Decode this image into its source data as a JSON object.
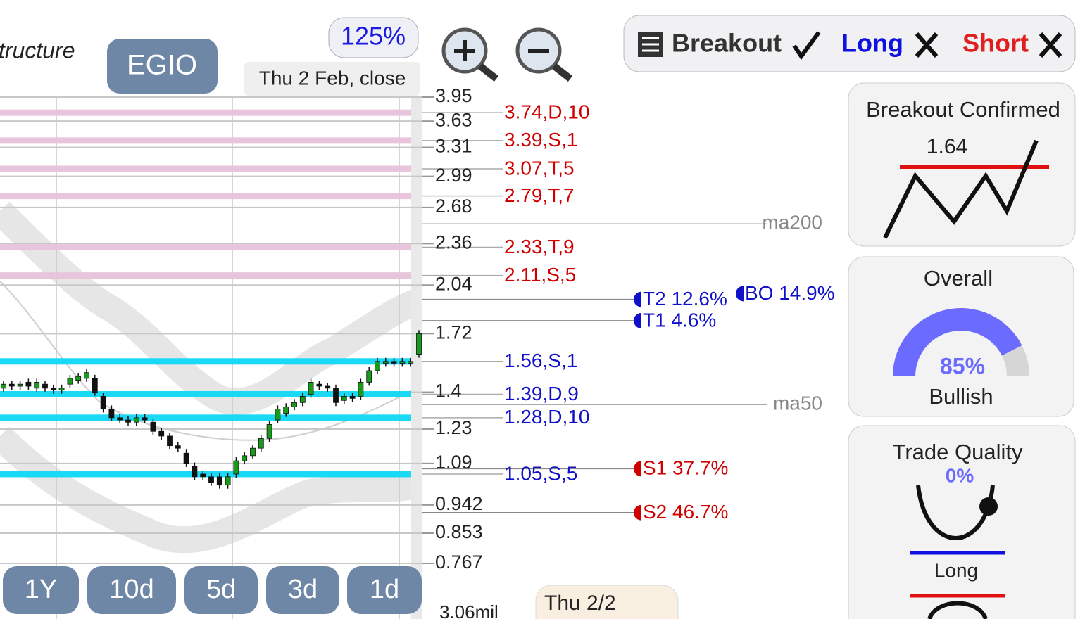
{
  "header": {
    "title_fragment": "tructure",
    "symbol": "EGIO",
    "zoom": "125%",
    "date_label": "Thu 2 Feb, close"
  },
  "toolbar": {
    "breakout": "Breakout",
    "long": "Long",
    "short": "Short"
  },
  "price_axis": {
    "ylim": [
      0.767,
      3.95
    ],
    "log": true,
    "ticks": [
      3.95,
      3.63,
      3.31,
      2.99,
      2.68,
      2.36,
      2.04,
      1.72,
      1.4,
      1.23,
      1.09,
      0.942,
      0.853,
      0.767
    ]
  },
  "levels": [
    {
      "label": "3.74,D,10",
      "price": 3.74,
      "color": "#d00000",
      "band": "#e8c5dc"
    },
    {
      "label": "3.39,S,1",
      "price": 3.39,
      "color": "#d00000",
      "band": "#e8c5dc"
    },
    {
      "label": "3.07,T,5",
      "price": 3.07,
      "color": "#d00000",
      "band": "#e8c5dc"
    },
    {
      "label": "2.79,T,7",
      "price": 2.79,
      "color": "#d00000",
      "band": "#e8c5dc"
    },
    {
      "label": "2.33,T,9",
      "price": 2.33,
      "color": "#d00000",
      "band": "#e8c5dc"
    },
    {
      "label": "2.11,S,5",
      "price": 2.11,
      "color": "#d00000",
      "band": "#e8c5dc"
    },
    {
      "label": "1.56,S,1",
      "price": 1.56,
      "color": "#1010c8",
      "band": "#19d9f5"
    },
    {
      "label": "1.39,D,9",
      "price": 1.39,
      "color": "#1010c8",
      "band": "#19d9f5"
    },
    {
      "label": "1.28,D,10",
      "price": 1.28,
      "color": "#1010c8",
      "band": "#19d9f5"
    },
    {
      "label": "1.05,S,5",
      "price": 1.05,
      "color": "#1010c8",
      "band": "#19d9f5"
    }
  ],
  "moving_averages": [
    {
      "label": "ma200",
      "price": 2.53
    },
    {
      "label": "ma50",
      "price": 1.34
    }
  ],
  "targets": [
    {
      "label": "T2 12.6%",
      "price": 1.94,
      "color": "#1010c8",
      "x": "near"
    },
    {
      "label": "BO 14.9%",
      "price": 1.98,
      "color": "#1010c8",
      "x": "far"
    },
    {
      "label": "T1 4.6%",
      "price": 1.8,
      "color": "#1010c8",
      "x": "near"
    },
    {
      "label": "S1 37.7%",
      "price": 1.07,
      "color": "#d00000",
      "x": "near"
    },
    {
      "label": "S2 46.7%",
      "price": 0.917,
      "color": "#d00000",
      "x": "near"
    }
  ],
  "candles": {
    "open": [
      1.42,
      1.44,
      1.43,
      1.45,
      1.42,
      1.44,
      1.42,
      1.41,
      1.44,
      1.46,
      1.47,
      1.47,
      1.38,
      1.32,
      1.28,
      1.27,
      1.26,
      1.28,
      1.26,
      1.22,
      1.2,
      1.16,
      1.13,
      1.08,
      1.05,
      1.04,
      1.04,
      1.01,
      1.05,
      1.1,
      1.12,
      1.15,
      1.19,
      1.27,
      1.3,
      1.33,
      1.35,
      1.39,
      1.44,
      1.43,
      1.42,
      1.36,
      1.38,
      1.38,
      1.45,
      1.51,
      1.55,
      1.56,
      1.55,
      1.55,
      1.6
    ],
    "close": [
      1.44,
      1.43,
      1.44,
      1.43,
      1.45,
      1.42,
      1.41,
      1.42,
      1.47,
      1.48,
      1.5,
      1.4,
      1.32,
      1.28,
      1.27,
      1.26,
      1.28,
      1.27,
      1.22,
      1.2,
      1.16,
      1.15,
      1.09,
      1.04,
      1.04,
      1.02,
      1.01,
      1.04,
      1.1,
      1.12,
      1.15,
      1.19,
      1.25,
      1.32,
      1.33,
      1.35,
      1.38,
      1.45,
      1.43,
      1.42,
      1.35,
      1.38,
      1.37,
      1.45,
      1.51,
      1.56,
      1.56,
      1.55,
      1.56,
      1.56,
      1.72
    ]
  },
  "ranges": [
    "1Y",
    "10d",
    "5d",
    "3d",
    "1d"
  ],
  "volume_label": "3.06mil",
  "footer_date": "Thu 2/2",
  "panels": {
    "breakout": {
      "title": "Breakout Confirmed",
      "value": 1.64
    },
    "overall": {
      "title": "Overall",
      "value": 85,
      "value_label": "85%",
      "label": "Bullish"
    },
    "trade_quality": {
      "title": "Trade Quality",
      "value_label": "0%",
      "label": "Long"
    }
  }
}
